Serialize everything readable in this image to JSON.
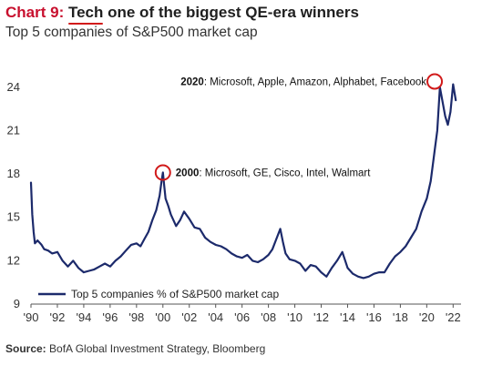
{
  "header": {
    "chart_label": "Chart 9:",
    "title_highlight": "Tech",
    "title_rest": " one of the biggest QE-era winners",
    "subtitle": "Top 5 companies of S&P500 market cap"
  },
  "footer": {
    "source_label": "Source:",
    "source_text": "BofA Global Investment Strategy, Bloomberg"
  },
  "colors": {
    "line": "#1c2a6b",
    "accent": "#d11a1a",
    "circle": "#d11a1a"
  },
  "chart_data": {
    "type": "line",
    "title": "Tech one of the biggest QE-era winners",
    "subtitle": "Top 5 companies of S&P500 market cap",
    "xlabel": "",
    "ylabel": "",
    "xlim": [
      1990,
      2022.6
    ],
    "ylim": [
      9,
      25.5
    ],
    "y_ticks": [
      9,
      12,
      15,
      18,
      21,
      24
    ],
    "x_ticks": [
      "'90",
      "'92",
      "'94",
      "'96",
      "'98",
      "'00",
      "'02",
      "'04",
      "'06",
      "'08",
      "'10",
      "'12",
      "'14",
      "'16",
      "'18",
      "'20",
      "'22"
    ],
    "x_tick_values": [
      1990,
      1992,
      1994,
      1996,
      1998,
      2000,
      2002,
      2004,
      2006,
      2008,
      2010,
      2012,
      2014,
      2016,
      2018,
      2020,
      2022
    ],
    "grid": false,
    "legend_position": "bottom-left",
    "series": [
      {
        "name": "Top 5 companies % of S&P500 market cap",
        "x": [
          1990.0,
          1990.1,
          1990.2,
          1990.3,
          1990.5,
          1990.8,
          1991.0,
          1991.3,
          1991.6,
          1992.0,
          1992.4,
          1992.8,
          1993.2,
          1993.6,
          1994.0,
          1994.4,
          1994.8,
          1995.2,
          1995.6,
          1996.0,
          1996.4,
          1996.8,
          1997.2,
          1997.6,
          1998.0,
          1998.3,
          1998.6,
          1998.9,
          1999.2,
          1999.5,
          1999.75,
          1999.9,
          2000.0,
          2000.1,
          2000.2,
          2000.4,
          2000.6,
          2000.8,
          2001.0,
          2001.3,
          2001.6,
          2002.0,
          2002.4,
          2002.8,
          2003.2,
          2003.6,
          2004.0,
          2004.4,
          2004.8,
          2005.2,
          2005.6,
          2006.0,
          2006.4,
          2006.8,
          2007.2,
          2007.6,
          2008.0,
          2008.3,
          2008.6,
          2008.9,
          2009.1,
          2009.3,
          2009.6,
          2010.0,
          2010.4,
          2010.8,
          2011.2,
          2011.6,
          2012.0,
          2012.4,
          2012.8,
          2013.2,
          2013.6,
          2014.0,
          2014.4,
          2014.8,
          2015.2,
          2015.6,
          2016.0,
          2016.4,
          2016.8,
          2017.2,
          2017.6,
          2018.0,
          2018.4,
          2018.8,
          2019.2,
          2019.6,
          2020.0,
          2020.3,
          2020.6,
          2020.8,
          2021.0,
          2021.2,
          2021.4,
          2021.6,
          2021.8,
          2022.0,
          2022.2
        ],
        "values": [
          17.4,
          15.2,
          14.0,
          13.2,
          13.4,
          13.1,
          12.8,
          12.7,
          12.5,
          12.6,
          12.0,
          11.6,
          12.0,
          11.5,
          11.2,
          11.3,
          11.4,
          11.6,
          11.8,
          11.6,
          12.0,
          12.3,
          12.7,
          13.1,
          13.2,
          13.0,
          13.5,
          14.0,
          14.8,
          15.5,
          16.5,
          17.5,
          18.1,
          17.2,
          16.3,
          15.8,
          15.2,
          14.8,
          14.4,
          14.8,
          15.4,
          14.9,
          14.3,
          14.2,
          13.6,
          13.3,
          13.1,
          13.0,
          12.8,
          12.5,
          12.3,
          12.2,
          12.4,
          12.0,
          11.9,
          12.1,
          12.4,
          12.8,
          13.5,
          14.2,
          13.3,
          12.5,
          12.1,
          12.0,
          11.8,
          11.3,
          11.7,
          11.6,
          11.2,
          10.9,
          11.5,
          12.0,
          12.6,
          11.5,
          11.1,
          10.9,
          10.8,
          10.9,
          11.1,
          11.2,
          11.2,
          11.8,
          12.3,
          12.6,
          13.0,
          13.6,
          14.2,
          15.4,
          16.3,
          17.5,
          19.6,
          21.0,
          24.0,
          23.0,
          22.0,
          21.4,
          22.3,
          24.2,
          23.1
        ]
      }
    ],
    "annotations": [
      {
        "bold": "2000",
        "text": ": Microsoft, GE, Cisco, Intel, Walmart",
        "x": 2000.0,
        "y": 18.1
      },
      {
        "bold": "2020",
        "text": ": Microsoft, Apple, Amazon, Alphabet, Facebook",
        "x": 2020.6,
        "y": 24.4
      }
    ]
  }
}
